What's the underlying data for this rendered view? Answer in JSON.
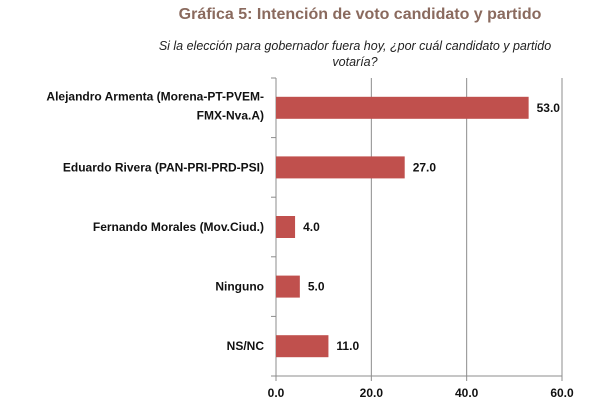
{
  "chart_data": {
    "type": "bar",
    "orientation": "horizontal",
    "title": "Gráfica 5: Intención de voto candidato y partido",
    "subtitle_lines": [
      "Si  la elección para gobernador fuera hoy, ¿por cuál candidato y partido",
      "votaría?"
    ],
    "categories": [
      [
        "Alejandro Armenta (Morena-PT-PVEM-",
        "FMX-Nva.A)"
      ],
      [
        "Eduardo Rivera (PAN-PRI-PRD-PSI)"
      ],
      [
        "Fernando Morales (Mov.Ciud.)"
      ],
      [
        "Ninguno"
      ],
      [
        "NS/NC"
      ]
    ],
    "values": [
      53.0,
      27.0,
      4.0,
      5.0,
      11.0
    ],
    "value_labels": [
      "53.0",
      "27.0",
      "4.0",
      "5.0",
      "11.0"
    ],
    "xlim": [
      0,
      60
    ],
    "xticks": [
      "0.0",
      "20.0",
      "40.0",
      "60.0"
    ],
    "grid": "vertical",
    "bar_color": "#c0504d",
    "xlabel": "",
    "ylabel": ""
  }
}
